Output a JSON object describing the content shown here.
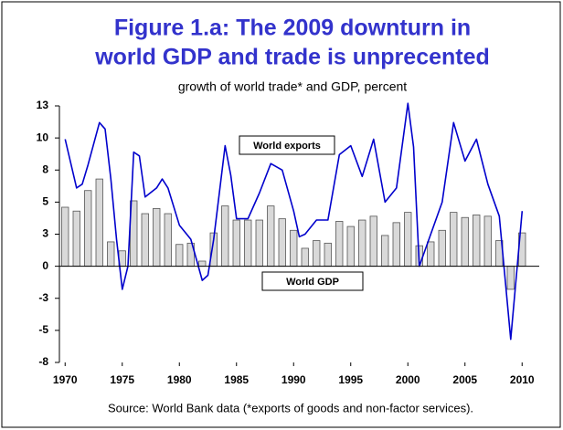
{
  "chart_data": {
    "type": "bar",
    "title": [
      "Figure 1.a: The 2009 downturn in",
      "world GDP and trade is unprecented"
    ],
    "subtitle": "growth of world trade* and GDP, percent",
    "source": "Source: World Bank data (*exports of goods and non-factor services).",
    "annotations": [
      "World exports",
      "World GDP"
    ],
    "xlim": [
      1969.5,
      2011.5
    ],
    "xticks": [
      1970,
      1975,
      1980,
      1985,
      1990,
      1995,
      2000,
      2005,
      2010
    ],
    "ylim": [
      -7.5,
      12.5
    ],
    "yticks": [
      {
        "value": 12.5,
        "label": "13"
      },
      10,
      {
        "value": 7.5,
        "label": "8"
      },
      5,
      {
        "value": 2.5,
        "label": "3"
      },
      0,
      {
        "value": -2.5,
        "label": "-3"
      },
      -5,
      {
        "value": -7.5,
        "label": "-8"
      }
    ],
    "series": [
      {
        "name": "World GDP",
        "type": "bar",
        "color": "#d9d9d9",
        "x": [
          1970,
          1971,
          1972,
          1973,
          1974,
          1975,
          1976,
          1977,
          1978,
          1979,
          1980,
          1981,
          1982,
          1983,
          1984,
          1985,
          1986,
          1987,
          1988,
          1989,
          1990,
          1991,
          1992,
          1993,
          1994,
          1995,
          1996,
          1997,
          1998,
          1999,
          2000,
          2001,
          2002,
          2003,
          2004,
          2005,
          2006,
          2007,
          2008,
          2009,
          2010
        ],
        "values": [
          4.6,
          4.3,
          5.9,
          6.8,
          1.9,
          1.2,
          5.1,
          4.1,
          4.5,
          4.1,
          1.7,
          1.8,
          0.4,
          2.6,
          4.7,
          3.6,
          3.6,
          3.6,
          4.7,
          3.7,
          2.8,
          1.4,
          2.0,
          1.8,
          3.5,
          3.1,
          3.6,
          3.9,
          2.4,
          3.4,
          4.2,
          1.6,
          1.9,
          2.8,
          4.2,
          3.8,
          4.0,
          3.9,
          2.0,
          -1.8,
          2.6
        ]
      },
      {
        "name": "World exports",
        "type": "line",
        "color": "#0000cc",
        "x": [
          1970,
          1971,
          1971.5,
          1972,
          1973,
          1973.5,
          1974,
          1974.5,
          1975,
          1975.5,
          1976,
          1976.5,
          1977,
          1978,
          1978.5,
          1979,
          1980,
          1981,
          1982,
          1982.5,
          1983,
          1984,
          1984.5,
          1985,
          1986,
          1987,
          1988,
          1989,
          1990,
          1990.5,
          1991,
          1992,
          1993,
          1994,
          1995,
          1996,
          1997,
          1998,
          1999,
          2000,
          2000.5,
          2001,
          2002,
          2003,
          2004,
          2005,
          2006,
          2007,
          2008,
          2009,
          2010
        ],
        "values": [
          9.9,
          6.1,
          6.4,
          7.9,
          11.2,
          10.7,
          6.8,
          2.1,
          -1.8,
          0,
          8.9,
          8.6,
          5.4,
          6.1,
          6.8,
          6.1,
          3.2,
          2.1,
          -1.1,
          -0.7,
          2.1,
          9.4,
          7.1,
          3.7,
          3.7,
          5.7,
          8.0,
          7.5,
          4.3,
          2.3,
          2.5,
          3.6,
          3.6,
          8.7,
          9.4,
          7.0,
          9.9,
          5.0,
          6.1,
          12.7,
          9.3,
          0,
          2.5,
          5.0,
          11.2,
          8.2,
          9.9,
          6.4,
          3.9,
          -5.7,
          4.3
        ]
      }
    ]
  }
}
